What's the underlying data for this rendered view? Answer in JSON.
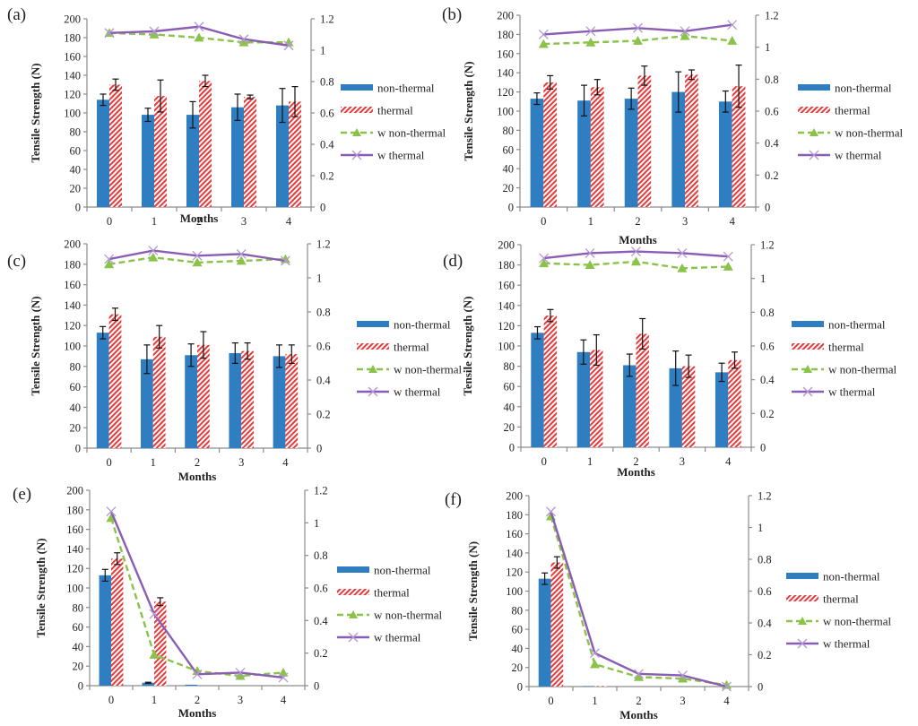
{
  "figure": {
    "ylabel": "Tensile Strength (N)",
    "xlabel": "Months",
    "legend": [
      "non-thermal",
      "thermal",
      "w non-thermal",
      "w thermal"
    ],
    "colors": {
      "non_thermal": "#2E7EC1",
      "thermal": "#E8393A",
      "w_non_thermal": "#8BC34A",
      "w_thermal": "#8A5DB4",
      "error_bar": "#111111",
      "axis": "#8c8c8c"
    }
  },
  "chart_data": [
    {
      "panel": "(a)",
      "type": "bar",
      "categories": [
        "0",
        "1",
        "2",
        "3",
        "4"
      ],
      "xlabel": "Months",
      "ylabel": "Tensile Strength (N)",
      "ylim": [
        0,
        200
      ],
      "yticks": [
        "0",
        "20",
        "40",
        "60",
        "80",
        "100",
        "120",
        "140",
        "160",
        "180",
        "200"
      ],
      "y2lim": [
        0,
        1.2
      ],
      "y2ticks": [
        "0",
        "0.2",
        "0.4",
        "0.6",
        "0.8",
        "1",
        "1.2"
      ],
      "legend_position": "right",
      "series": [
        {
          "name": "non-thermal",
          "type": "bar",
          "axis": "left",
          "values": [
            114,
            98,
            98,
            106,
            108
          ],
          "errors": [
            6,
            7,
            14,
            14,
            18
          ]
        },
        {
          "name": "thermal",
          "type": "bar",
          "axis": "left",
          "values": [
            130,
            118,
            134,
            117,
            112
          ],
          "errors": [
            6,
            17,
            6,
            2,
            16
          ]
        },
        {
          "name": "w non-thermal",
          "type": "line",
          "axis": "right",
          "values": [
            1.11,
            1.1,
            1.08,
            1.05,
            1.05
          ]
        },
        {
          "name": "w thermal",
          "type": "line",
          "axis": "right",
          "values": [
            1.11,
            1.12,
            1.15,
            1.07,
            1.03
          ]
        }
      ]
    },
    {
      "panel": "(b)",
      "type": "bar",
      "categories": [
        "0",
        "1",
        "2",
        "3",
        "4"
      ],
      "xlabel": "Months",
      "ylabel": "Tensile Strength (N)",
      "ylim": [
        0,
        200
      ],
      "yticks": [
        "0",
        "20",
        "40",
        "60",
        "80",
        "100",
        "120",
        "140",
        "160",
        "180",
        "200"
      ],
      "y2lim": [
        0,
        1.2
      ],
      "y2ticks": [
        "0",
        "0.2",
        "0.4",
        "0.6",
        "0.8",
        "1",
        "1.2"
      ],
      "legend_position": "right",
      "series": [
        {
          "name": "non-thermal",
          "type": "bar",
          "axis": "left",
          "values": [
            113,
            111,
            113,
            120,
            110
          ],
          "errors": [
            6,
            16,
            11,
            21,
            11
          ]
        },
        {
          "name": "thermal",
          "type": "bar",
          "axis": "left",
          "values": [
            130,
            125,
            137,
            138,
            126
          ],
          "errors": [
            7,
            8,
            10,
            5,
            22
          ]
        },
        {
          "name": "w non-thermal",
          "type": "line",
          "axis": "right",
          "values": [
            1.02,
            1.03,
            1.04,
            1.07,
            1.04
          ]
        },
        {
          "name": "w thermal",
          "type": "line",
          "axis": "right",
          "values": [
            1.08,
            1.1,
            1.12,
            1.1,
            1.14
          ]
        }
      ]
    },
    {
      "panel": "(c)",
      "type": "bar",
      "categories": [
        "0",
        "1",
        "2",
        "3",
        "4"
      ],
      "xlabel": "Months",
      "ylabel": "Tensile Strength (N)",
      "ylim": [
        0,
        200
      ],
      "yticks": [
        "0",
        "20",
        "40",
        "60",
        "80",
        "100",
        "120",
        "140",
        "160",
        "180",
        "200"
      ],
      "y2lim": [
        0,
        1.2
      ],
      "y2ticks": [
        "0",
        "0.2",
        "0.4",
        "0.6",
        "0.8",
        "1",
        "1.2"
      ],
      "legend_position": "right",
      "series": [
        {
          "name": "non-thermal",
          "type": "bar",
          "axis": "left",
          "values": [
            113,
            87,
            91,
            93,
            90
          ],
          "errors": [
            6,
            14,
            11,
            10,
            11
          ]
        },
        {
          "name": "thermal",
          "type": "bar",
          "axis": "left",
          "values": [
            131,
            109,
            101,
            95,
            92
          ],
          "errors": [
            6,
            11,
            13,
            8,
            9
          ]
        },
        {
          "name": "w non-thermal",
          "type": "line",
          "axis": "right",
          "values": [
            1.08,
            1.12,
            1.09,
            1.1,
            1.11
          ]
        },
        {
          "name": "w thermal",
          "type": "line",
          "axis": "right",
          "values": [
            1.11,
            1.16,
            1.13,
            1.14,
            1.1
          ]
        }
      ]
    },
    {
      "panel": "(d)",
      "type": "bar",
      "categories": [
        "0",
        "1",
        "2",
        "3",
        "4"
      ],
      "xlabel": "Months",
      "ylabel": "Tensile Strength (N)",
      "ylim": [
        0,
        200
      ],
      "yticks": [
        "0",
        "20",
        "40",
        "60",
        "80",
        "100",
        "120",
        "140",
        "160",
        "180",
        "200"
      ],
      "y2lim": [
        0,
        1.2
      ],
      "y2ticks": [
        "0",
        "0.2",
        "0.4",
        "0.6",
        "0.8",
        "1",
        "1.2"
      ],
      "legend_position": "right",
      "series": [
        {
          "name": "non-thermal",
          "type": "bar",
          "axis": "left",
          "values": [
            113,
            94,
            81,
            78,
            74
          ],
          "errors": [
            6,
            12,
            11,
            17,
            9
          ]
        },
        {
          "name": "thermal",
          "type": "bar",
          "axis": "left",
          "values": [
            130,
            96,
            112,
            80,
            86
          ],
          "errors": [
            6,
            15,
            15,
            11,
            8
          ]
        },
        {
          "name": "w non-thermal",
          "type": "line",
          "axis": "right",
          "values": [
            1.09,
            1.08,
            1.1,
            1.06,
            1.07
          ]
        },
        {
          "name": "w thermal",
          "type": "line",
          "axis": "right",
          "values": [
            1.12,
            1.15,
            1.16,
            1.15,
            1.13
          ]
        }
      ]
    },
    {
      "panel": "(e)",
      "type": "bar",
      "categories": [
        "0",
        "1",
        "2",
        "3",
        "4"
      ],
      "xlabel": "Months",
      "ylabel": "Tensile Strength (N)",
      "ylim": [
        0,
        200
      ],
      "yticks": [
        "0",
        "20",
        "40",
        "60",
        "80",
        "100",
        "120",
        "140",
        "160",
        "180",
        "200"
      ],
      "y2lim": [
        0,
        1.2
      ],
      "y2ticks": [
        "0",
        "0.2",
        "0.4",
        "0.6",
        "0.8",
        "1",
        "1.2"
      ],
      "legend_position": "right",
      "series": [
        {
          "name": "non-thermal",
          "type": "bar",
          "axis": "left",
          "values": [
            113,
            3,
            1,
            0,
            0
          ],
          "errors": [
            6,
            0.5,
            0,
            0,
            0
          ]
        },
        {
          "name": "thermal",
          "type": "bar",
          "axis": "left",
          "values": [
            130,
            86,
            0,
            0,
            0
          ],
          "errors": [
            6,
            4,
            0,
            0,
            0
          ]
        },
        {
          "name": "w non-thermal",
          "type": "line",
          "axis": "right",
          "values": [
            1.03,
            0.19,
            0.09,
            0.06,
            0.08
          ]
        },
        {
          "name": "w thermal",
          "type": "line",
          "axis": "right",
          "values": [
            1.07,
            0.44,
            0.07,
            0.08,
            0.05
          ]
        }
      ]
    },
    {
      "panel": "(f)",
      "type": "bar",
      "categories": [
        "0",
        "1",
        "2",
        "3",
        "4"
      ],
      "xlabel": "Months",
      "ylabel": "Tensile Strength (N)",
      "ylim": [
        0,
        200
      ],
      "yticks": [
        "0",
        "20",
        "40",
        "60",
        "80",
        "100",
        "120",
        "140",
        "160",
        "180",
        "200"
      ],
      "y2lim": [
        0,
        1.2
      ],
      "y2ticks": [
        "0",
        "0.2",
        "0.4",
        "0.6",
        "0.8",
        "1",
        "1.2"
      ],
      "legend_position": "right",
      "series": [
        {
          "name": "non-thermal",
          "type": "bar",
          "axis": "left",
          "values": [
            113,
            0.5,
            0,
            0,
            0
          ],
          "errors": [
            6,
            0,
            0,
            0,
            0
          ]
        },
        {
          "name": "thermal",
          "type": "bar",
          "axis": "left",
          "values": [
            130,
            0.5,
            0,
            0,
            0
          ],
          "errors": [
            6,
            0,
            0,
            0,
            0
          ]
        },
        {
          "name": "w non-thermal",
          "type": "line",
          "axis": "right",
          "values": [
            1.07,
            0.14,
            0.06,
            0.05,
            0.01
          ]
        },
        {
          "name": "w thermal",
          "type": "line",
          "axis": "right",
          "values": [
            1.1,
            0.21,
            0.08,
            0.07,
            0.0
          ]
        }
      ]
    }
  ]
}
